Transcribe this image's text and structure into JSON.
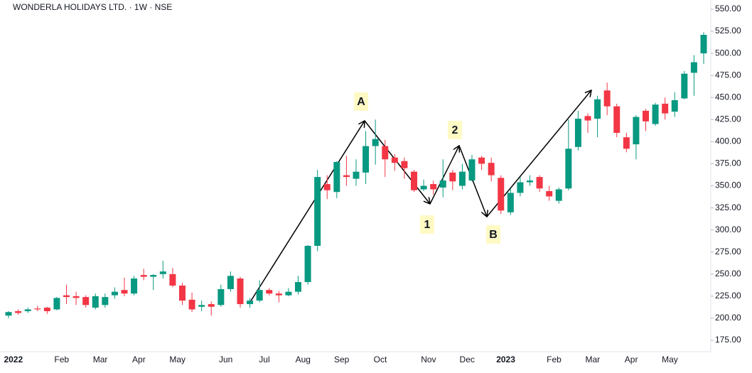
{
  "chart_data": {
    "type": "candlestick",
    "title": "WONDERLA HOLIDAYS LTD. · 1W · NSE",
    "categories": [
      null,
      "2022",
      null,
      null,
      null,
      null,
      "Feb",
      null,
      null,
      null,
      "Mar",
      null,
      null,
      null,
      "Apr",
      null,
      null,
      null,
      "May",
      null,
      null,
      null,
      null,
      "Jun",
      null,
      null,
      null,
      "Jul",
      null,
      null,
      null,
      "Aug",
      null,
      null,
      null,
      "Sep",
      null,
      null,
      null,
      "Oct",
      null,
      null,
      null,
      null,
      "Nov",
      null,
      null,
      null,
      "Dec",
      null,
      null,
      null,
      "2023",
      null,
      null,
      null,
      null,
      "Feb",
      null,
      null,
      null,
      "Mar",
      null,
      null,
      null,
      "Apr",
      null,
      null,
      null,
      "May",
      null,
      null,
      null
    ],
    "open": [
      203,
      208,
      208,
      211,
      212,
      210,
      226,
      225,
      224,
      212,
      215,
      226,
      232,
      228,
      249,
      247,
      250,
      250,
      237,
      221,
      213,
      216,
      215,
      233,
      245,
      216,
      220,
      232,
      228,
      226,
      230,
      241,
      282,
      352,
      343,
      362,
      358,
      365,
      395,
      395,
      382,
      378,
      366,
      346,
      352,
      348,
      365,
      350,
      356,
      382,
      376,
      359,
      320,
      342,
      354,
      360,
      344,
      333,
      347,
      394,
      429,
      426,
      458,
      440,
      405,
      397,
      435,
      420,
      443,
      434,
      449,
      478,
      500
    ],
    "high": [
      208,
      210,
      212,
      214,
      213,
      224,
      238,
      230,
      226,
      228,
      228,
      235,
      246,
      248,
      256,
      250,
      265,
      257,
      240,
      229,
      220,
      219,
      238,
      253,
      247,
      223,
      243,
      234,
      231,
      234,
      248,
      283,
      368,
      362,
      378,
      384,
      380,
      412,
      425,
      402,
      386,
      382,
      368,
      357,
      356,
      380,
      368,
      375,
      385,
      384,
      382,
      362,
      347,
      360,
      362,
      362,
      350,
      348,
      425,
      435,
      432,
      452,
      467,
      443,
      410,
      430,
      437,
      444,
      450,
      456,
      480,
      498,
      524
    ],
    "low": [
      200,
      204,
      206,
      208,
      205,
      209,
      216,
      215,
      212,
      210,
      212,
      222,
      225,
      226,
      243,
      232,
      245,
      235,
      215,
      207,
      208,
      203,
      213,
      230,
      212,
      212,
      218,
      226,
      218,
      225,
      227,
      238,
      276,
      335,
      336,
      350,
      350,
      352,
      374,
      360,
      367,
      358,
      343,
      344,
      340,
      337,
      345,
      346,
      355,
      368,
      355,
      318,
      317,
      338,
      350,
      343,
      333,
      330,
      345,
      390,
      410,
      405,
      430,
      405,
      388,
      380,
      412,
      418,
      425,
      428,
      448,
      452,
      488
    ],
    "close": [
      207,
      206,
      210,
      210,
      208,
      223,
      224,
      223,
      215,
      225,
      224,
      230,
      228,
      245,
      247,
      249,
      253,
      237,
      220,
      210,
      215,
      213,
      233,
      248,
      216,
      220,
      232,
      228,
      226,
      230,
      241,
      282,
      360,
      345,
      377,
      360,
      366,
      395,
      403,
      380,
      376,
      370,
      345,
      350,
      346,
      356,
      355,
      366,
      380,
      375,
      362,
      322,
      342,
      354,
      356,
      347,
      338,
      346,
      392,
      426,
      424,
      448,
      440,
      410,
      392,
      428,
      423,
      442,
      432,
      447,
      477,
      490,
      521
    ],
    "up_color": "#089981",
    "down_color": "#f23645",
    "ylim": [
      175,
      550
    ],
    "yticks": [
      {
        "value": 175,
        "label": "175.00"
      },
      {
        "value": 200,
        "label": "200.00"
      },
      {
        "value": 225,
        "label": "225.00"
      },
      {
        "value": 250,
        "label": "250.00"
      },
      {
        "value": 275,
        "label": "275.00"
      },
      {
        "value": 300,
        "label": "300.00"
      },
      {
        "value": 325,
        "label": "325.00"
      },
      {
        "value": 350,
        "label": "350.00"
      },
      {
        "value": 375,
        "label": "375.00"
      },
      {
        "value": 400,
        "label": "400.00"
      },
      {
        "value": 425,
        "label": "425.00"
      },
      {
        "value": 450,
        "label": "450.00"
      },
      {
        "value": 475,
        "label": "475.00"
      },
      {
        "value": 500,
        "label": "500.00"
      },
      {
        "value": 525,
        "label": "525.00"
      },
      {
        "value": 550,
        "label": "550.00"
      }
    ],
    "grid": false,
    "annotations": [
      {
        "text": "A"
      },
      {
        "text": "1"
      },
      {
        "text": "2"
      },
      {
        "text": "B"
      }
    ]
  }
}
